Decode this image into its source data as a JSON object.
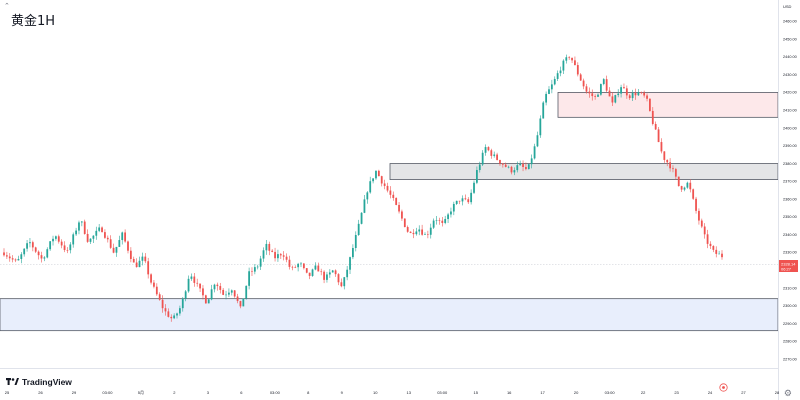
{
  "header": {
    "title": "黄金1H",
    "collapse_icon": "chevron-up-icon"
  },
  "branding": {
    "label": "TradingView",
    "icon": "tradingview-logo-icon"
  },
  "controls": {
    "settings_icon": "gear-icon",
    "goto_icon": "target-icon"
  },
  "price_axis": {
    "currency": "USD",
    "ticks": [
      "2460.00",
      "2450.00",
      "2440.00",
      "2430.00",
      "2420.00",
      "2410.00",
      "2400.00",
      "2390.00",
      "2380.00",
      "2370.00",
      "2360.00",
      "2350.00",
      "2340.00",
      "2330.00",
      "2320.00",
      "2310.00",
      "2300.00",
      "2290.00",
      "2280.00",
      "2270.00"
    ],
    "last_price_label": "2328.14",
    "countdown_label": "06:27"
  },
  "time_axis": {
    "ticks": [
      "25",
      "26",
      "29",
      "03:00",
      "5月",
      "2",
      "3",
      "6",
      "03:00",
      "8",
      "9",
      "10",
      "13",
      "03:00",
      "15",
      "16",
      "17",
      "20",
      "03:00",
      "22",
      "23",
      "24",
      "27",
      "28"
    ]
  },
  "colors": {
    "up": "#26a69a",
    "down": "#ef5350",
    "resistance_zone": "#fde8ea",
    "middle_zone": "#e4e5e7",
    "support_zone": "#e8eefc",
    "last_price": "#ef5350"
  },
  "chart_data": {
    "type": "candlestick",
    "title": "黄金1H",
    "currency": "USD",
    "timeframe": "1H",
    "ylim": [
      2265,
      2472
    ],
    "grid": false,
    "last_price": 2328.14,
    "zones": [
      {
        "name": "resistance",
        "low": 2406,
        "high": 2420
      },
      {
        "name": "middle",
        "low": 2371,
        "high": 2380
      },
      {
        "name": "support",
        "low": 2286,
        "high": 2304
      }
    ],
    "close_path": [
      [
        0,
        2330
      ],
      [
        6,
        2324
      ],
      [
        12,
        2336
      ],
      [
        18,
        2326
      ],
      [
        24,
        2340
      ],
      [
        30,
        2330
      ],
      [
        36,
        2349
      ],
      [
        40,
        2336
      ],
      [
        46,
        2344
      ],
      [
        52,
        2330
      ],
      [
        56,
        2340
      ],
      [
        62,
        2322
      ],
      [
        66,
        2327
      ],
      [
        70,
        2312
      ],
      [
        76,
        2297
      ],
      [
        80,
        2292
      ],
      [
        84,
        2300
      ],
      [
        88,
        2319
      ],
      [
        92,
        2310
      ],
      [
        96,
        2302
      ],
      [
        100,
        2314
      ],
      [
        104,
        2306
      ],
      [
        108,
        2310
      ],
      [
        112,
        2298
      ],
      [
        116,
        2318
      ],
      [
        120,
        2322
      ],
      [
        124,
        2334
      ],
      [
        128,
        2327
      ],
      [
        132,
        2330
      ],
      [
        136,
        2320
      ],
      [
        140,
        2324
      ],
      [
        144,
        2316
      ],
      [
        148,
        2322
      ],
      [
        152,
        2315
      ],
      [
        156,
        2320
      ],
      [
        160,
        2310
      ],
      [
        164,
        2327
      ],
      [
        168,
        2345
      ],
      [
        172,
        2365
      ],
      [
        176,
        2376
      ],
      [
        180,
        2368
      ],
      [
        184,
        2360
      ],
      [
        188,
        2350
      ],
      [
        192,
        2340
      ],
      [
        196,
        2344
      ],
      [
        200,
        2339
      ],
      [
        204,
        2350
      ],
      [
        208,
        2345
      ],
      [
        212,
        2355
      ],
      [
        216,
        2360
      ],
      [
        220,
        2358
      ],
      [
        224,
        2376
      ],
      [
        228,
        2389
      ],
      [
        232,
        2384
      ],
      [
        236,
        2380
      ],
      [
        240,
        2376
      ],
      [
        244,
        2379
      ],
      [
        248,
        2376
      ],
      [
        252,
        2392
      ],
      [
        256,
        2417
      ],
      [
        260,
        2425
      ],
      [
        264,
        2435
      ],
      [
        268,
        2441
      ],
      [
        272,
        2430
      ],
      [
        276,
        2420
      ],
      [
        280,
        2417
      ],
      [
        284,
        2427
      ],
      [
        288,
        2413
      ],
      [
        292,
        2424
      ],
      [
        296,
        2418
      ],
      [
        300,
        2420
      ],
      [
        304,
        2417
      ],
      [
        308,
        2400
      ],
      [
        312,
        2384
      ],
      [
        316,
        2378
      ],
      [
        320,
        2366
      ],
      [
        324,
        2369
      ],
      [
        328,
        2352
      ],
      [
        332,
        2338
      ],
      [
        336,
        2330
      ],
      [
        340,
        2328
      ]
    ]
  }
}
